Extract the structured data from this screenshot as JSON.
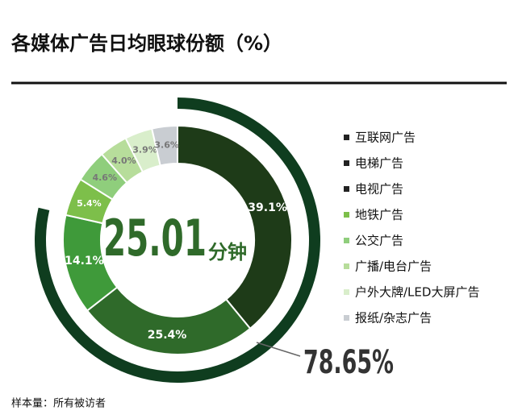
{
  "chart_data": {
    "type": "donut",
    "title": "各媒体广告日均眼球份额（%）",
    "categories": [
      "互联网广告",
      "电梯广告",
      "电视广告",
      "地铁广告",
      "公交广告",
      "广播/电台广告",
      "户外大牌/LED大屏广告",
      "报纸/杂志广告"
    ],
    "values": [
      39.1,
      25.4,
      14.1,
      5.4,
      4.6,
      4.0,
      3.9,
      3.6
    ],
    "value_labels": [
      "39.1%",
      "25.4%",
      "14.1%",
      "5.4%",
      "4.6%",
      "4.0%",
      "3.9%",
      "3.6%"
    ],
    "colors": [
      "#1e3b18",
      "#2f6a2a",
      "#3f9a3a",
      "#7dbf4a",
      "#8fce7c",
      "#b7dd9b",
      "#d9eecb",
      "#c9cdd2"
    ],
    "center_value": 25.01,
    "center_unit": "分钟",
    "highlight": {
      "value": 78.65,
      "label": "78.65%"
    },
    "highlight_color": "#0f3d1f",
    "footnote": "样本量：所有被访者"
  }
}
